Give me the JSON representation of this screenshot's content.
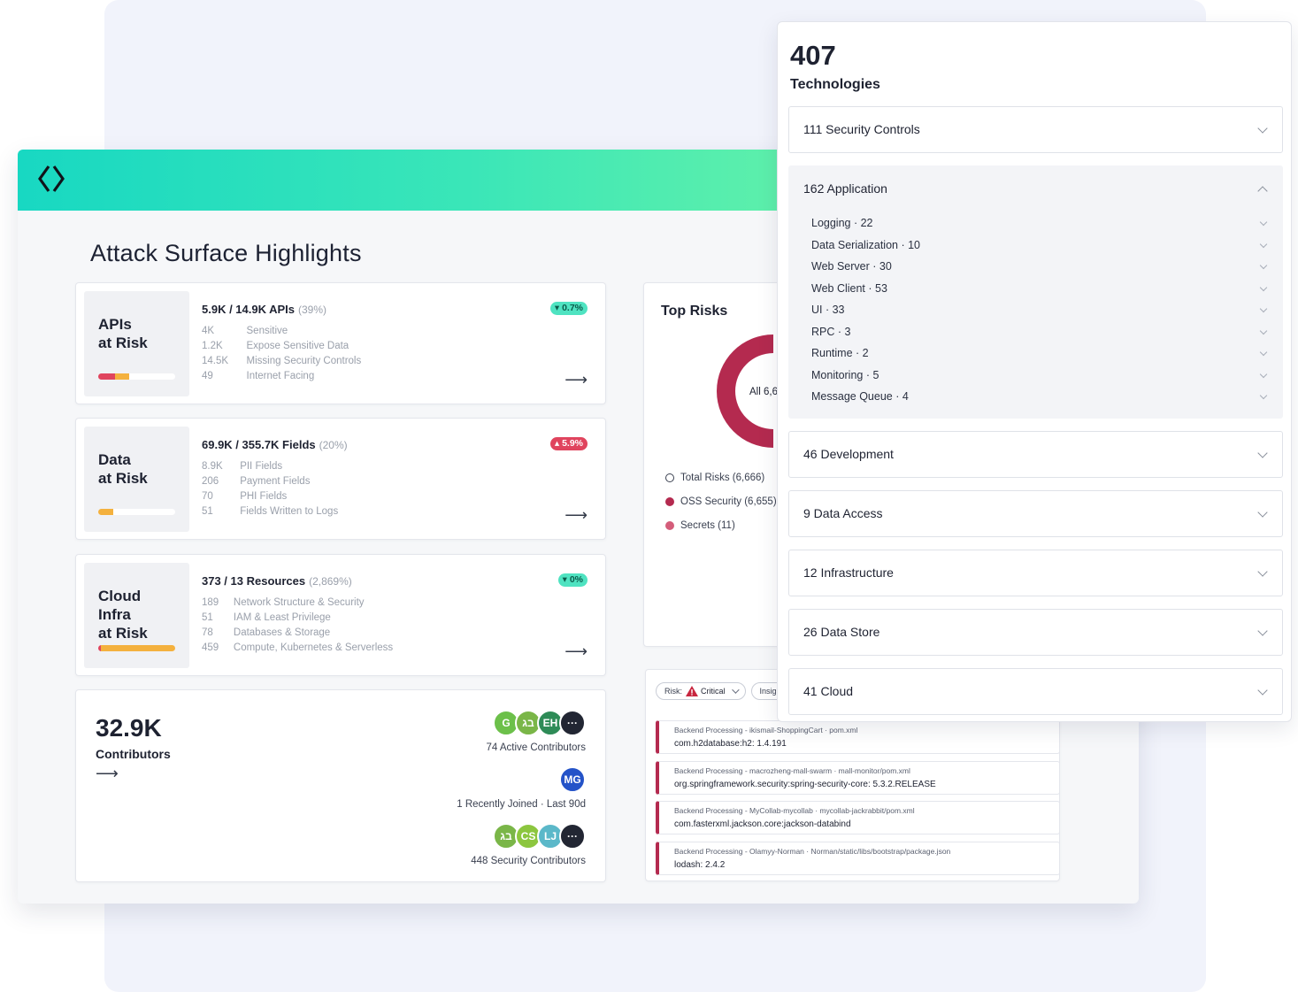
{
  "colors": {
    "header_gradient_start": "#18d8c2",
    "header_gradient_end": "#7ef6a0",
    "critical_red": "#b42a4f",
    "badge_green": "#4fe3c1",
    "badge_red": "#e0445e",
    "bar_red": "#e0445e",
    "bar_orange": "#f4b13e"
  },
  "page": {
    "title": "Attack Surface Highlights",
    "logo_icon": "diamond-brackets-logo-icon"
  },
  "risk_cards": [
    {
      "title": "APIs\nat Risk",
      "headline": "5.9K / 14.9K APIs",
      "pct": "(39%)",
      "badge": "▾ 0.7%",
      "badge_type": "green",
      "bar": {
        "red": 0.22,
        "orange": 0.18
      },
      "rows": [
        {
          "num": "4K",
          "label": "Sensitive"
        },
        {
          "num": "1.2K",
          "label": "Expose Sensitive Data"
        },
        {
          "num": "14.5K",
          "label": "Missing Security Controls"
        },
        {
          "num": "49",
          "label": "Internet Facing"
        }
      ]
    },
    {
      "title": "Data\nat Risk",
      "headline": "69.9K / 355.7K Fields",
      "pct": "(20%)",
      "badge": "▴ 5.9%",
      "badge_type": "red",
      "bar": {
        "red": 0.0,
        "orange": 0.2
      },
      "rows": [
        {
          "num": "8.9K",
          "label": "PII Fields"
        },
        {
          "num": "206",
          "label": "Payment Fields"
        },
        {
          "num": "70",
          "label": "PHI Fields"
        },
        {
          "num": "51",
          "label": "Fields Written to Logs"
        }
      ]
    },
    {
      "title": "Cloud\nInfra\nat Risk",
      "headline": "373 / 13 Resources",
      "pct": "(2,869%)",
      "badge": "▾ 0%",
      "badge_type": "green",
      "bar": {
        "red": 0.04,
        "orange": 0.96
      },
      "rows": [
        {
          "num": "189",
          "label": "Network Structure & Security"
        },
        {
          "num": "51",
          "label": "IAM & Least Privilege"
        },
        {
          "num": "78",
          "label": "Databases & Storage"
        },
        {
          "num": "459",
          "label": "Compute, Kubernetes & Serverless"
        }
      ]
    }
  ],
  "contributors": {
    "count": "32.9K",
    "label": "Contributors",
    "groups": [
      {
        "caption": "74 Active Contributors",
        "avatars": [
          {
            "text": "G",
            "color": "#6cc04a"
          },
          {
            "text": "בג",
            "color": "#7ab648"
          },
          {
            "text": "EH",
            "color": "#2e8b57"
          },
          {
            "text": "···",
            "color": "#222633"
          }
        ]
      },
      {
        "caption": "1 Recently Joined · Last 90d",
        "avatars": [
          {
            "text": "MG",
            "color": "#2453c8"
          }
        ]
      },
      {
        "caption": "448 Security Contributors",
        "avatars": [
          {
            "text": "בג",
            "color": "#7ab648"
          },
          {
            "text": "CS",
            "color": "#8cc63f"
          },
          {
            "text": "LJ",
            "color": "#5bb8c9"
          },
          {
            "text": "···",
            "color": "#222633"
          }
        ]
      }
    ]
  },
  "top_risks": {
    "title": "Top Risks",
    "donut_center": "All 6,6",
    "legend": [
      {
        "label": "Total Risks (6,666)",
        "style": "outline"
      },
      {
        "label": "OSS Security (6,655)",
        "color": "#b42a4f"
      },
      {
        "label": "Secrets (11)",
        "color": "#d45d7a"
      }
    ]
  },
  "findings": {
    "filters": {
      "risk_label": "Risk:",
      "risk_value": "Critical",
      "insight_label": "Insig"
    },
    "items": [
      {
        "path": "Backend Processing - ikismail-ShoppingCart · pom.xml",
        "package": "com.h2database:h2: 1.4.191"
      },
      {
        "path": "Backend Processing - macrozheng-mall-swarm · mall-monitor/pom.xml",
        "package": "org.springframework.security:spring-security-core: 5.3.2.RELEASE"
      },
      {
        "path": "Backend Processing - MyCollab-mycollab · mycollab-jackrabbit/pom.xml",
        "package": "com.fasterxml.jackson.core:jackson-databind"
      },
      {
        "path": "Backend Processing - Olamyy-Norman · Norman/static/libs/bootstrap/package.json",
        "package": "lodash: 2.4.2"
      }
    ]
  },
  "technologies": {
    "count": "407",
    "label": "Technologies",
    "sections": [
      {
        "title": "111 Security Controls",
        "open": false
      },
      {
        "title": "162 Application",
        "open": true,
        "items": [
          "Logging · 22",
          "Data Serialization · 10",
          "Web Server · 30",
          "Web Client · 53",
          "UI · 33",
          "RPC · 3",
          "Runtime · 2",
          "Monitoring · 5",
          "Message Queue · 4"
        ]
      },
      {
        "title": "46 Development",
        "open": false
      },
      {
        "title": "9 Data Access",
        "open": false
      },
      {
        "title": "12 Infrastructure",
        "open": false
      },
      {
        "title": "26 Data Store",
        "open": false
      },
      {
        "title": "41 Cloud",
        "open": false
      }
    ]
  }
}
